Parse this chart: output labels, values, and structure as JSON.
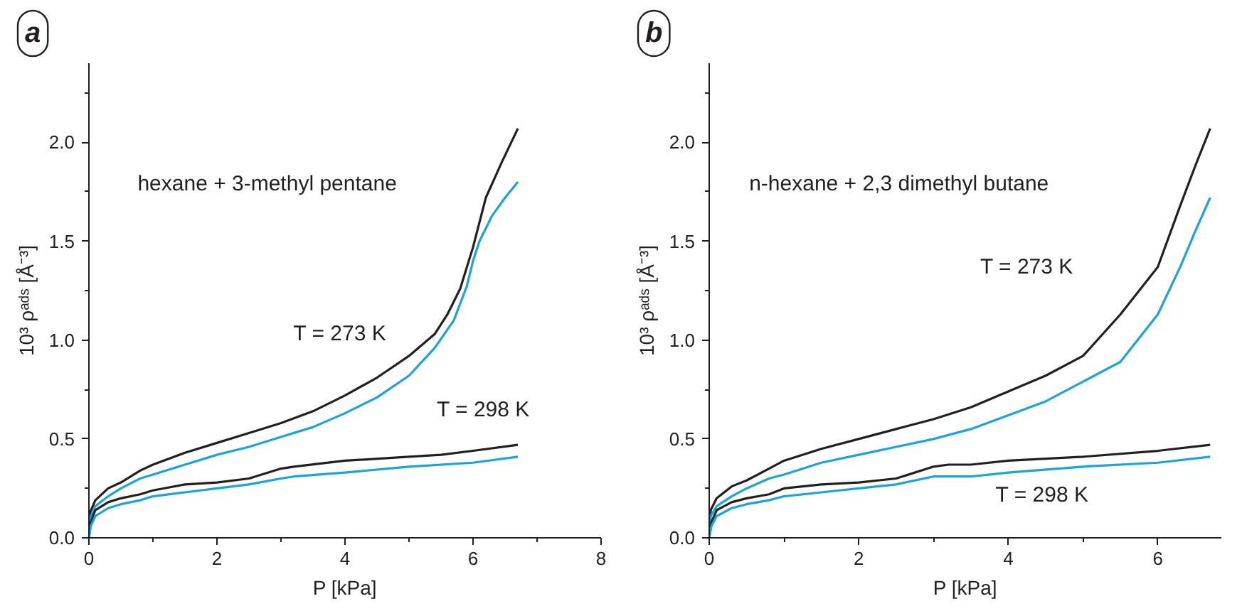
{
  "chart_data": [
    {
      "type": "line",
      "title": "a",
      "xlabel": "P [kPa]",
      "ylabel": "10³ ρᵃᵈˢ [Å⁻³]",
      "xlim": [
        0,
        8
      ],
      "xticks": [
        0,
        {
          "value": 1,
          "label": null
        },
        2,
        {
          "value": 3,
          "label": null
        },
        4,
        {
          "value": 5,
          "label": null
        },
        6,
        {
          "value": 7,
          "label": null
        },
        8
      ],
      "ylim": [
        0,
        2.4
      ],
      "yticks": [
        {
          "value": 0,
          "label": "0.0"
        },
        {
          "value": 0.25,
          "label": null
        },
        {
          "value": 0.5,
          "label": "0.5"
        },
        {
          "value": 0.75,
          "label": null
        },
        {
          "value": 1,
          "label": "1.0"
        },
        {
          "value": 1.25,
          "label": null
        },
        {
          "value": 1.5,
          "label": "1.5"
        },
        {
          "value": 1.75,
          "label": null
        },
        {
          "value": 2,
          "label": "2.0"
        },
        {
          "value": 2.25,
          "label": null
        }
      ],
      "grid": false,
      "line_style": "solid",
      "marker": "none",
      "series": [
        {
          "color": "#231f20",
          "x": [
            0,
            0.02,
            0.1,
            0.3,
            0.5,
            0.8,
            1.0,
            1.5,
            2.0,
            2.5,
            3.0,
            3.5,
            4.0,
            4.5,
            5.0,
            5.4,
            5.6,
            5.8,
            6.0,
            6.2,
            6.45,
            6.7
          ],
          "values": [
            0,
            0.13,
            0.19,
            0.25,
            0.28,
            0.34,
            0.37,
            0.43,
            0.48,
            0.53,
            0.58,
            0.64,
            0.72,
            0.81,
            0.92,
            1.03,
            1.13,
            1.26,
            1.47,
            1.72,
            1.9,
            2.07
          ]
        },
        {
          "color": "#1ba3dc",
          "x": [
            0,
            0.02,
            0.1,
            0.3,
            0.5,
            0.8,
            1.0,
            1.5,
            2.0,
            2.5,
            3.0,
            3.5,
            4.0,
            4.5,
            5.0,
            5.4,
            5.7,
            5.9,
            6.0,
            6.1,
            6.3,
            6.5,
            6.7
          ],
          "values": [
            0,
            0.1,
            0.16,
            0.21,
            0.25,
            0.3,
            0.32,
            0.37,
            0.42,
            0.46,
            0.51,
            0.56,
            0.63,
            0.71,
            0.82,
            0.96,
            1.1,
            1.27,
            1.4,
            1.5,
            1.63,
            1.72,
            1.8
          ]
        },
        {
          "color": "#231f20",
          "x": [
            0,
            0.03,
            0.1,
            0.3,
            0.5,
            0.8,
            1.0,
            1.5,
            2.0,
            2.5,
            3.0,
            3.2,
            4.0,
            5.0,
            5.5,
            6.0,
            6.7
          ],
          "values": [
            0,
            0.08,
            0.14,
            0.18,
            0.2,
            0.22,
            0.24,
            0.27,
            0.28,
            0.3,
            0.35,
            0.36,
            0.39,
            0.41,
            0.42,
            0.44,
            0.47
          ]
        },
        {
          "color": "#1ba3dc",
          "x": [
            0,
            0.03,
            0.1,
            0.3,
            0.5,
            0.8,
            1.0,
            1.5,
            2.0,
            2.5,
            3.0,
            3.2,
            4.0,
            5.0,
            6.0,
            6.7
          ],
          "values": [
            0,
            0.06,
            0.11,
            0.15,
            0.17,
            0.19,
            0.21,
            0.23,
            0.25,
            0.27,
            0.3,
            0.31,
            0.33,
            0.36,
            0.38,
            0.41
          ]
        }
      ],
      "annotations": [
        "hexane + 3-methyl pentane",
        "T = 273 K",
        "T = 298 K"
      ]
    },
    {
      "type": "line",
      "title": "b",
      "xlabel": "P [kPa]",
      "ylabel": "10³ ρᵃᵈˢ [Å⁻³]",
      "xlim": [
        0,
        6.85
      ],
      "xticks": [
        0,
        {
          "value": 1,
          "label": null
        },
        2,
        {
          "value": 3,
          "label": null
        },
        4,
        {
          "value": 5,
          "label": null
        },
        6
      ],
      "ylim": [
        0,
        2.4
      ],
      "yticks": [
        {
          "value": 0,
          "label": "0.0"
        },
        {
          "value": 0.25,
          "label": null
        },
        {
          "value": 0.5,
          "label": "0.5"
        },
        {
          "value": 0.75,
          "label": null
        },
        {
          "value": 1,
          "label": "1.0"
        },
        {
          "value": 1.25,
          "label": null
        },
        {
          "value": 1.5,
          "label": "1.5"
        },
        {
          "value": 1.75,
          "label": null
        },
        {
          "value": 2,
          "label": "2.0"
        },
        {
          "value": 2.25,
          "label": null
        }
      ],
      "grid": false,
      "line_style": "solid",
      "marker": "none",
      "series": [
        {
          "color": "#231f20",
          "x": [
            0,
            0.02,
            0.1,
            0.3,
            0.5,
            0.8,
            1.0,
            1.5,
            2.0,
            2.5,
            3.0,
            3.5,
            4.0,
            4.5,
            5.0,
            5.5,
            6.0,
            6.3,
            6.5,
            6.7
          ],
          "values": [
            0,
            0.14,
            0.2,
            0.26,
            0.29,
            0.35,
            0.39,
            0.45,
            0.5,
            0.55,
            0.6,
            0.66,
            0.74,
            0.82,
            0.92,
            1.13,
            1.37,
            1.68,
            1.88,
            2.07
          ]
        },
        {
          "color": "#1ba3dc",
          "x": [
            0,
            0.02,
            0.1,
            0.3,
            0.5,
            0.8,
            1.0,
            1.5,
            2.0,
            2.5,
            3.0,
            3.5,
            4.0,
            4.5,
            5.0,
            5.5,
            6.0,
            6.3,
            6.5,
            6.7
          ],
          "values": [
            0,
            0.11,
            0.16,
            0.21,
            0.25,
            0.3,
            0.32,
            0.38,
            0.42,
            0.46,
            0.5,
            0.55,
            0.62,
            0.69,
            0.79,
            0.89,
            1.13,
            1.37,
            1.55,
            1.72
          ]
        },
        {
          "color": "#231f20",
          "x": [
            0,
            0.03,
            0.1,
            0.3,
            0.5,
            0.8,
            1.0,
            1.5,
            2.0,
            2.5,
            3.0,
            3.2,
            3.5,
            4.0,
            5.0,
            6.0,
            6.7
          ],
          "values": [
            0,
            0.08,
            0.14,
            0.18,
            0.2,
            0.22,
            0.25,
            0.27,
            0.28,
            0.3,
            0.36,
            0.37,
            0.37,
            0.39,
            0.41,
            0.44,
            0.47
          ]
        },
        {
          "color": "#1ba3dc",
          "x": [
            0,
            0.03,
            0.1,
            0.3,
            0.5,
            0.8,
            1.0,
            1.5,
            2.0,
            2.5,
            3.0,
            3.2,
            3.5,
            4.0,
            5.0,
            6.0,
            6.7
          ],
          "values": [
            0,
            0.06,
            0.11,
            0.15,
            0.17,
            0.19,
            0.21,
            0.23,
            0.25,
            0.27,
            0.31,
            0.31,
            0.31,
            0.33,
            0.36,
            0.38,
            0.41
          ]
        }
      ],
      "annotations": [
        "n-hexane + 2,3 dimethyl butane",
        "T = 273 K",
        "T = 298 K"
      ]
    }
  ]
}
